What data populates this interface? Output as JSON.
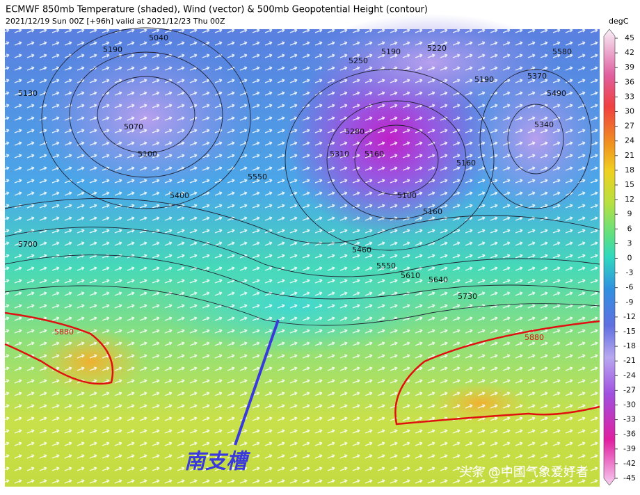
{
  "header": {
    "title": "ECMWF 850mb Temperature (shaded), Wind (vector) & 500mb Geopotential Height (contour)",
    "subtitle": "2021/12/19 Sun 00Z [+96h] valid at 2021/12/23 Thu 00Z"
  },
  "colorbar": {
    "label": "degC",
    "ticks": [
      45,
      42,
      39,
      36,
      33,
      30,
      27,
      24,
      21,
      18,
      15,
      12,
      9,
      6,
      3,
      0,
      -3,
      -6,
      -9,
      -12,
      -15,
      -18,
      -21,
      -24,
      -27,
      -30,
      -33,
      -36,
      -39,
      -42,
      -45
    ]
  },
  "contour_labels": [
    "5040",
    "5190",
    "5130",
    "5070",
    "5100",
    "5400",
    "5550",
    "5700",
    "5880",
    "5250",
    "5190",
    "5220",
    "5190",
    "5580",
    "5370",
    "5490",
    "5340",
    "5310",
    "5280",
    "5160",
    "5100",
    "5160",
    "5160",
    "5460",
    "5550",
    "5610",
    "5640",
    "5730",
    "5880"
  ],
  "annotation": "南支槽",
  "watermark": "头条 @中国气象爱好者"
}
